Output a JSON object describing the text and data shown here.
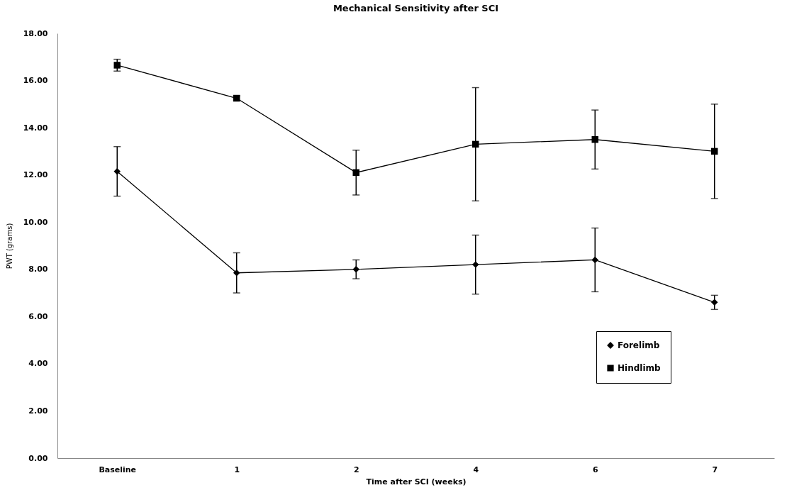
{
  "chart_data": {
    "type": "line",
    "title": "Mechanical Sensitivity after SCI",
    "xlabel": "Time after SCI (weeks)",
    "ylabel": "PWT (grams)",
    "categories": [
      "Baseline",
      "1",
      "2",
      "4",
      "6",
      "7"
    ],
    "series": [
      {
        "name": "Forelimb",
        "color": "#000000",
        "marker": "diamond",
        "values": [
          12.15,
          7.85,
          8.0,
          8.2,
          8.4,
          6.6
        ],
        "errors": [
          1.05,
          0.85,
          0.4,
          1.25,
          1.35,
          0.3
        ]
      },
      {
        "name": "Hindlimb",
        "color": "#000000",
        "marker": "square",
        "values": [
          16.65,
          15.25,
          12.1,
          13.3,
          13.5,
          13.0
        ],
        "errors": [
          0.25,
          0.1,
          0.95,
          2.4,
          1.25,
          2.0
        ]
      }
    ],
    "ylim": [
      0,
      18
    ],
    "yticks": [
      {
        "value": 0,
        "label": "0.00"
      },
      {
        "value": 2,
        "label": "2.00"
      },
      {
        "value": 4,
        "label": "4.00"
      },
      {
        "value": 6,
        "label": "6.00"
      },
      {
        "value": 8,
        "label": "8.00"
      },
      {
        "value": 10,
        "label": "10.00"
      },
      {
        "value": 12,
        "label": "12.00"
      },
      {
        "value": 14,
        "label": "14.00"
      },
      {
        "value": 16,
        "label": "16.00"
      },
      {
        "value": 18,
        "label": "18.00"
      }
    ],
    "grid": false,
    "legend": "bottom right",
    "line_style": "solid"
  }
}
